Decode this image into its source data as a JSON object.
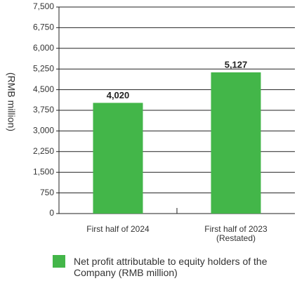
{
  "chart_data": {
    "type": "bar",
    "y_label": "(RMB million)",
    "categories": [
      "First half of 2024",
      "First half of 2023\n(Restated)"
    ],
    "series": [
      {
        "name": "Net profit attributable to equity holders of the Company  (RMB million)",
        "color": "#43b649",
        "values": [
          4020,
          5127
        ],
        "value_labels": [
          "4,020",
          "5,127"
        ]
      }
    ],
    "ylim": [
      0,
      7500
    ],
    "yticks": [
      0,
      750,
      {
        "value": 1500,
        "label": "1,500"
      },
      {
        "value": 2250,
        "label": "2,250"
      },
      {
        "value": 3000,
        "label": "3,000"
      },
      {
        "value": 3750,
        "label": "3,750"
      },
      {
        "value": 4500,
        "label": "4,500"
      },
      {
        "value": 5250,
        "label": "5,250"
      },
      {
        "value": 6000,
        "label": "6,000"
      },
      {
        "value": 6750,
        "label": "6,750"
      },
      {
        "value": 7500,
        "label": "7,500"
      }
    ],
    "grid": true
  }
}
